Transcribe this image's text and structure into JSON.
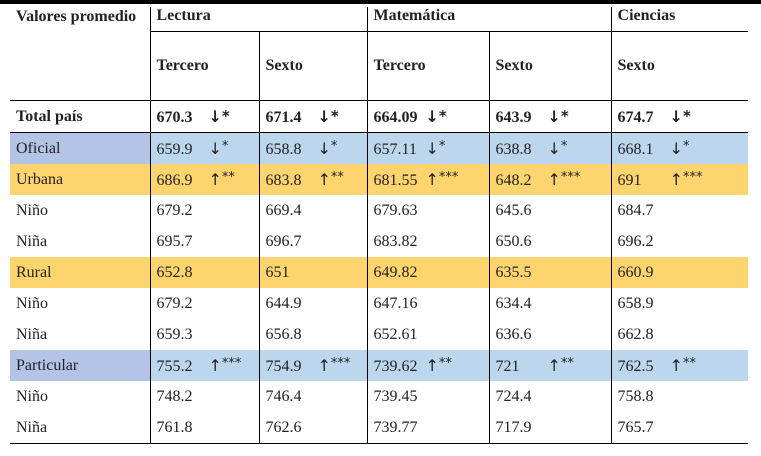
{
  "table": {
    "corner_label": "Valores promedio",
    "groups": [
      {
        "name": "Lectura",
        "grades": [
          "Tercero",
          "Sexto"
        ]
      },
      {
        "name": "Matemática",
        "grades": [
          "Tercero",
          "Sexto"
        ]
      },
      {
        "name": "Ciencias",
        "grades": [
          "Sexto"
        ]
      }
    ],
    "rows": [
      {
        "label": "Total país",
        "style": "total",
        "cells": [
          {
            "value": "670.3",
            "arrow": "↓",
            "sig": "*"
          },
          {
            "value": "671.4",
            "arrow": "↓",
            "sig": "*"
          },
          {
            "value": "664.09",
            "arrow": "↓",
            "sig": "*"
          },
          {
            "value": "643.9",
            "arrow": "↓",
            "sig": "*"
          },
          {
            "value": "674.7",
            "arrow": "↓",
            "sig": "*"
          }
        ]
      },
      {
        "label": "Oficial",
        "style": "blue",
        "cells": [
          {
            "value": "659.9",
            "arrow": "↓",
            "sig": "*"
          },
          {
            "value": "658.8",
            "arrow": "↓",
            "sig": "*"
          },
          {
            "value": "657.11",
            "arrow": "↓",
            "sig": "*"
          },
          {
            "value": "638.8",
            "arrow": "↓",
            "sig": "*"
          },
          {
            "value": "668.1",
            "arrow": "↓",
            "sig": "*"
          }
        ]
      },
      {
        "label": "Urbana",
        "style": "gold",
        "cells": [
          {
            "value": "686.9",
            "arrow": "↑",
            "sig": "**"
          },
          {
            "value": "683.8",
            "arrow": "↑",
            "sig": "**"
          },
          {
            "value": "681.55",
            "arrow": "↑",
            "sig": "***"
          },
          {
            "value": "648.2",
            "arrow": "↑",
            "sig": "***"
          },
          {
            "value": "691",
            "arrow": "↑",
            "sig": "***"
          }
        ]
      },
      {
        "label": "Niño",
        "style": "plain",
        "cells": [
          {
            "value": "679.2"
          },
          {
            "value": "669.4"
          },
          {
            "value": "679.63"
          },
          {
            "value": "645.6"
          },
          {
            "value": "684.7"
          }
        ]
      },
      {
        "label": "Niña",
        "style": "plain",
        "cells": [
          {
            "value": "695.7"
          },
          {
            "value": "696.7"
          },
          {
            "value": "683.82"
          },
          {
            "value": "650.6"
          },
          {
            "value": "696.2"
          }
        ]
      },
      {
        "label": "Rural",
        "style": "gold",
        "cells": [
          {
            "value": "652.8"
          },
          {
            "value": "651"
          },
          {
            "value": "649.82"
          },
          {
            "value": "635.5"
          },
          {
            "value": "660.9"
          }
        ]
      },
      {
        "label": "Niño",
        "style": "plain",
        "cells": [
          {
            "value": "679.2"
          },
          {
            "value": "644.9"
          },
          {
            "value": "647.16"
          },
          {
            "value": "634.4"
          },
          {
            "value": "658.9"
          }
        ]
      },
      {
        "label": "Niña",
        "style": "plain",
        "cells": [
          {
            "value": "659.3"
          },
          {
            "value": "656.8"
          },
          {
            "value": "652.61"
          },
          {
            "value": "636.6"
          },
          {
            "value": "662.8"
          }
        ]
      },
      {
        "label": "Particular",
        "style": "blue",
        "cells": [
          {
            "value": "755.2",
            "arrow": "↑",
            "sig": "***"
          },
          {
            "value": "754.9",
            "arrow": "↑",
            "sig": "***"
          },
          {
            "value": "739.62",
            "arrow": "↑",
            "sig": "**"
          },
          {
            "value": "721",
            "arrow": "↑",
            "sig": "**"
          },
          {
            "value": "762.5",
            "arrow": "↑",
            "sig": "**"
          }
        ]
      },
      {
        "label": "Niño",
        "style": "plain",
        "cells": [
          {
            "value": "748.2"
          },
          {
            "value": "746.4"
          },
          {
            "value": "739.45"
          },
          {
            "value": "724.4"
          },
          {
            "value": "758.8"
          }
        ]
      },
      {
        "label": "Niña",
        "style": "plain",
        "cells": [
          {
            "value": "761.8"
          },
          {
            "value": "762.6"
          },
          {
            "value": "739.77"
          },
          {
            "value": "717.9"
          },
          {
            "value": "765.7"
          }
        ]
      }
    ],
    "colors": {
      "oficial_label_bg": "#b4c4e6",
      "oficial_row_bg": "#bcd6ee",
      "urbana_rural_bg": "#fed46e"
    }
  }
}
